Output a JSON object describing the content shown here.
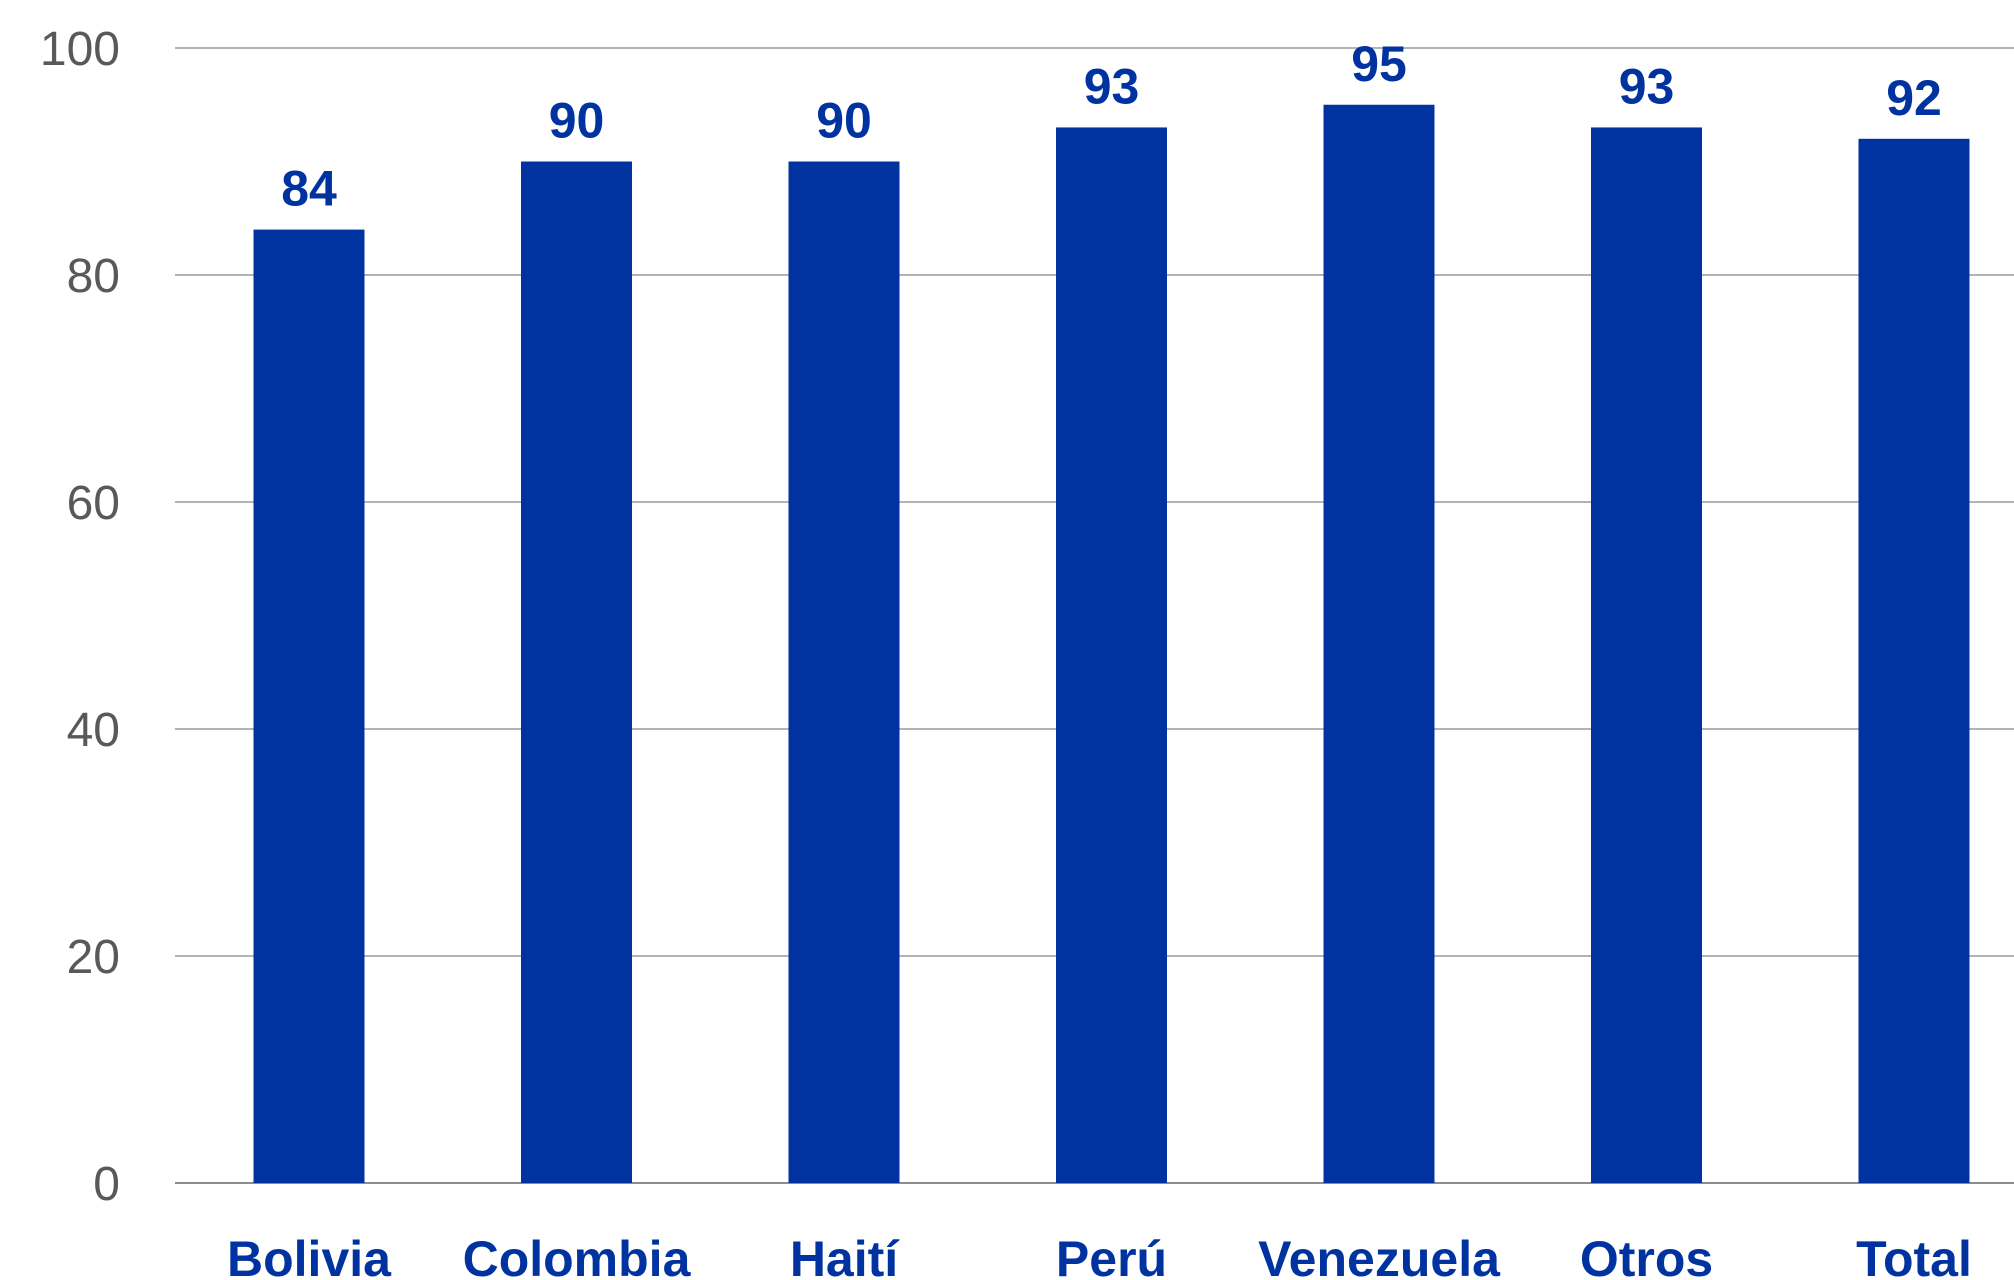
{
  "chart_data": {
    "type": "bar",
    "title": "",
    "xlabel": "",
    "ylabel": "",
    "categories": [
      "Bolivia",
      "Colombia",
      "Haití",
      "Perú",
      "Venezuela",
      "Otros",
      "Total"
    ],
    "values": [
      84,
      90,
      90,
      93,
      95,
      93,
      92
    ],
    "data_labels": [
      "84",
      "90",
      "90",
      "93",
      "95",
      "93",
      "92"
    ],
    "ylim": [
      0,
      100
    ],
    "yticks": [
      0,
      20,
      40,
      60,
      80,
      100
    ],
    "grid": true,
    "legend": "none",
    "colors": {
      "bar": "#0033a0",
      "label": "#0033a0",
      "axis_text": "#595959",
      "grid": "#b3b3b3"
    }
  }
}
